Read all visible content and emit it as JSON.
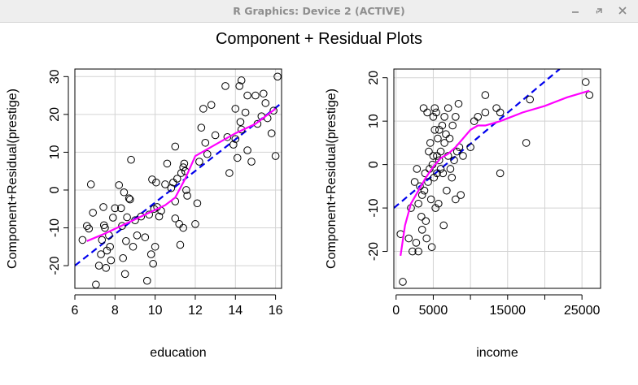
{
  "window": {
    "title": "R Graphics: Device 2 (ACTIVE)",
    "controls": [
      "minimize",
      "restore",
      "close"
    ]
  },
  "figure": {
    "title": "Component + Residual Plots"
  },
  "colors": {
    "points": "#000000",
    "regression_line": "#0000ee",
    "smooth_line": "#ff00ff",
    "grid": "#d3d3d3"
  },
  "chart_data": [
    {
      "type": "scatter",
      "xlabel": "education",
      "ylabel": "Component+Residual(prestige)",
      "xlim": [
        6,
        16.3
      ],
      "ylim": [
        -26,
        32
      ],
      "xticks": [
        6,
        8,
        10,
        12,
        14,
        16
      ],
      "yticks": [
        -20,
        -10,
        0,
        10,
        20,
        30
      ],
      "grid": true,
      "regression": {
        "x0": 6,
        "y0": -20,
        "x1": 16.3,
        "y1": 23,
        "style": "dashed",
        "color": "blue"
      },
      "smooth": {
        "x": [
          6.6,
          7.5,
          8.5,
          9.5,
          10.5,
          11.0,
          11.5,
          12.0,
          13.0,
          14.0,
          15.0,
          16.0
        ],
        "y": [
          -13.5,
          -11.5,
          -9,
          -6.5,
          -4,
          -2,
          3,
          9,
          12,
          15,
          17.5,
          21.5
        ]
      },
      "points": [
        [
          6.38,
          -13.2
        ],
        [
          6.6,
          -9.5
        ],
        [
          6.7,
          -10.2
        ],
        [
          6.8,
          1.5
        ],
        [
          6.9,
          -6.0
        ],
        [
          7.05,
          -25.0
        ],
        [
          7.2,
          -20.0
        ],
        [
          7.3,
          -17.0
        ],
        [
          7.35,
          -13.2
        ],
        [
          7.42,
          -4.5
        ],
        [
          7.45,
          -9.3
        ],
        [
          7.5,
          -10.0
        ],
        [
          7.55,
          -20.6
        ],
        [
          7.6,
          -16.0
        ],
        [
          7.7,
          -12.0
        ],
        [
          7.75,
          -15.0
        ],
        [
          7.8,
          -18.6
        ],
        [
          7.9,
          -7.3
        ],
        [
          8.0,
          -4.8
        ],
        [
          8.2,
          1.3
        ],
        [
          8.3,
          -4.8
        ],
        [
          8.35,
          -9.5
        ],
        [
          8.4,
          -18.0
        ],
        [
          8.45,
          -0.6
        ],
        [
          8.5,
          -22.2
        ],
        [
          8.55,
          -13.5
        ],
        [
          8.6,
          -7.2
        ],
        [
          8.7,
          -2.2
        ],
        [
          8.75,
          -2.5
        ],
        [
          8.8,
          8.0
        ],
        [
          8.9,
          -15.0
        ],
        [
          9.0,
          -8.0
        ],
        [
          9.1,
          -12.0
        ],
        [
          9.3,
          -7.0
        ],
        [
          9.5,
          -12.5
        ],
        [
          9.6,
          -24.0
        ],
        [
          9.7,
          -6.5
        ],
        [
          9.8,
          -17.0
        ],
        [
          9.85,
          2.8
        ],
        [
          9.9,
          -19.5
        ],
        [
          9.95,
          -5.0
        ],
        [
          10.0,
          -15.0
        ],
        [
          10.05,
          2.0
        ],
        [
          10.1,
          -4.5
        ],
        [
          10.2,
          -7.0
        ],
        [
          10.3,
          -5.5
        ],
        [
          10.5,
          1.5
        ],
        [
          10.6,
          7.0
        ],
        [
          10.8,
          0.5
        ],
        [
          10.9,
          2.0
        ],
        [
          11.0,
          -7.5
        ],
        [
          11.0,
          -3.0
        ],
        [
          11.0,
          11.5
        ],
        [
          11.1,
          3.0
        ],
        [
          11.2,
          -9.0
        ],
        [
          11.25,
          -14.5
        ],
        [
          11.3,
          4.5
        ],
        [
          11.4,
          -10.0
        ],
        [
          11.4,
          6.0
        ],
        [
          11.45,
          7.0
        ],
        [
          11.5,
          5.0
        ],
        [
          11.55,
          0.0
        ],
        [
          11.6,
          -1.5
        ],
        [
          12.0,
          -9.0
        ],
        [
          12.1,
          -3.5
        ],
        [
          12.2,
          7.5
        ],
        [
          12.3,
          16.5
        ],
        [
          12.4,
          21.5
        ],
        [
          12.5,
          12.5
        ],
        [
          12.6,
          9.5
        ],
        [
          12.8,
          22.5
        ],
        [
          13.0,
          14.5
        ],
        [
          13.5,
          27.5
        ],
        [
          13.6,
          14.0
        ],
        [
          13.7,
          4.5
        ],
        [
          13.9,
          12.0
        ],
        [
          14.0,
          13.5
        ],
        [
          14.0,
          21.5
        ],
        [
          14.1,
          8.5
        ],
        [
          14.2,
          27.5
        ],
        [
          14.25,
          18.0
        ],
        [
          14.3,
          16.0
        ],
        [
          14.3,
          29.0
        ],
        [
          14.5,
          20.5
        ],
        [
          14.6,
          25.0
        ],
        [
          14.6,
          10.5
        ],
        [
          14.8,
          7.5
        ],
        [
          15.0,
          25.0
        ],
        [
          15.1,
          17.5
        ],
        [
          15.3,
          19.5
        ],
        [
          15.4,
          25.5
        ],
        [
          15.5,
          23.0
        ],
        [
          15.6,
          19.0
        ],
        [
          15.8,
          15.0
        ],
        [
          15.9,
          21.0
        ],
        [
          16.0,
          9.0
        ],
        [
          16.1,
          30.0
        ]
      ]
    },
    {
      "type": "scatter",
      "xlabel": "income",
      "ylabel": "Component+Residual(prestige)",
      "xlim": [
        -300,
        27500
      ],
      "ylim": [
        -28.5,
        22
      ],
      "xticks": [
        0,
        5000,
        15000,
        25000
      ],
      "xticks_minor": [
        10000,
        20000
      ],
      "yticks": [
        -20,
        -10,
        0,
        10,
        20
      ],
      "grid": true,
      "regression": {
        "x0": -300,
        "y0": -10,
        "x1": 22000,
        "y1": 22,
        "style": "dashed",
        "color": "blue"
      },
      "smooth": {
        "x": [
          600,
          1200,
          2000,
          3000,
          4000,
          5000,
          6000,
          7000,
          8000,
          9000,
          10000,
          11000,
          12000,
          14000,
          17000,
          20000,
          23000,
          26000
        ],
        "y": [
          -21,
          -14,
          -9,
          -6,
          -3,
          -0.5,
          1.5,
          2.5,
          4,
          6,
          8,
          9,
          9,
          10,
          12,
          13.5,
          15.5,
          17
        ]
      },
      "points": [
        [
          600,
          -16
        ],
        [
          900,
          -27
        ],
        [
          1700,
          -17
        ],
        [
          2000,
          -10
        ],
        [
          2200,
          -20
        ],
        [
          2500,
          -4
        ],
        [
          2700,
          -18
        ],
        [
          2800,
          -1
        ],
        [
          3000,
          -9
        ],
        [
          3000,
          -20
        ],
        [
          3200,
          -5
        ],
        [
          3400,
          -12
        ],
        [
          3500,
          -7
        ],
        [
          3500,
          -15
        ],
        [
          3700,
          13
        ],
        [
          3800,
          -6
        ],
        [
          3900,
          -2
        ],
        [
          4000,
          -13
        ],
        [
          4100,
          -17
        ],
        [
          4200,
          12
        ],
        [
          4300,
          -4
        ],
        [
          4400,
          3
        ],
        [
          4500,
          -1
        ],
        [
          4600,
          5
        ],
        [
          4700,
          -8
        ],
        [
          4800,
          -19
        ],
        [
          4900,
          0
        ],
        [
          5000,
          11
        ],
        [
          5000,
          2
        ],
        [
          5100,
          -3
        ],
        [
          5200,
          13
        ],
        [
          5200,
          8
        ],
        [
          5300,
          -10
        ],
        [
          5400,
          12
        ],
        [
          5500,
          -2
        ],
        [
          5500,
          2
        ],
        [
          5600,
          6
        ],
        [
          5700,
          -9
        ],
        [
          5800,
          8
        ],
        [
          5800,
          1
        ],
        [
          6000,
          -1
        ],
        [
          6000,
          3
        ],
        [
          6200,
          9
        ],
        [
          6300,
          -2
        ],
        [
          6400,
          -14
        ],
        [
          6500,
          5
        ],
        [
          6500,
          11
        ],
        [
          6700,
          7
        ],
        [
          6800,
          -6
        ],
        [
          7000,
          2
        ],
        [
          7000,
          13
        ],
        [
          7200,
          6
        ],
        [
          7300,
          -1
        ],
        [
          7500,
          -3
        ],
        [
          7600,
          9
        ],
        [
          7800,
          1
        ],
        [
          8000,
          11
        ],
        [
          8000,
          -8
        ],
        [
          8200,
          3
        ],
        [
          8400,
          14
        ],
        [
          8500,
          4
        ],
        [
          8700,
          -7
        ],
        [
          9000,
          2
        ],
        [
          10000,
          4
        ],
        [
          10500,
          10
        ],
        [
          11000,
          11
        ],
        [
          12000,
          12
        ],
        [
          12000,
          16
        ],
        [
          13500,
          13
        ],
        [
          14000,
          -2
        ],
        [
          14000,
          12
        ],
        [
          17500,
          5
        ],
        [
          18000,
          15
        ],
        [
          25500,
          19
        ],
        [
          26000,
          16
        ]
      ]
    }
  ]
}
